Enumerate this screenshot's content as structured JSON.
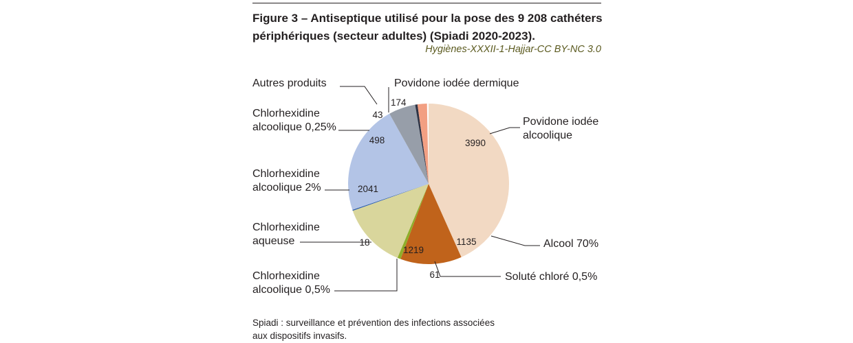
{
  "figure": {
    "title_line1": "Figure 3 – Antiseptique utilisé pour la pose des 9 208 cathéters",
    "title_line2": "périphériques (secteur adultes) (Spiadi 2020-2023).",
    "credit": "Hygiènes-XXXII-1-Hajjar-CC BY-NC 3.0",
    "footnote_line1": "Spiadi : surveillance et prévention des infections associées",
    "footnote_line2": "aux dispositifs invasifs."
  },
  "chart_data": {
    "type": "pie",
    "title": "Figure 3 – Antiseptique utilisé pour la pose des 9 208 cathéters périphériques (secteur adultes) (Spiadi 2020-2023).",
    "total": 9208,
    "start_angle_deg": 90,
    "direction": "clockwise",
    "slices": [
      {
        "label_lines": [
          "Povidone iodée",
          "alcoolique"
        ],
        "value": 3990,
        "color": "#f2d9c3"
      },
      {
        "label_lines": [
          "Alcool 70%"
        ],
        "value": 1135,
        "color": "#c0631b"
      },
      {
        "label_lines": [
          "Soluté chloré 0,5%"
        ],
        "value": 61,
        "color": "#8fae2a"
      },
      {
        "label_lines": [
          "Chlorhexidine",
          "alcoolique 0,5%"
        ],
        "value": 1219,
        "color": "#d9d69c"
      },
      {
        "label_lines": [
          "Chlorhexidine",
          "aqueuse"
        ],
        "value": 18,
        "color": "#2a5cab"
      },
      {
        "label_lines": [
          "Chlorhexidine",
          "alcoolique 2%"
        ],
        "value": 2041,
        "color": "#b3c4e6"
      },
      {
        "label_lines": [
          "Chlorhexidine",
          "alcoolique 0,25%"
        ],
        "value": 498,
        "color": "#979ea9"
      },
      {
        "label_lines": [
          "Autres produits"
        ],
        "value": 43,
        "color": "#2e3344"
      },
      {
        "label_lines": [
          "Povidone iodée dermique"
        ],
        "value": 174,
        "color": "#f29f82"
      }
    ]
  }
}
